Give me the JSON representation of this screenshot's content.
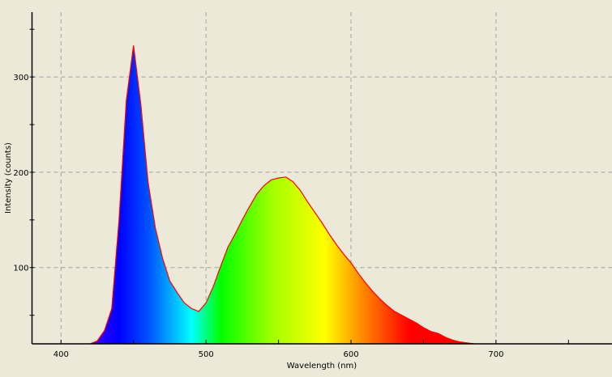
{
  "chart_data": {
    "type": "area",
    "title": "",
    "xlabel": "Wavelength (nm)",
    "ylabel": "Intensity (counts)",
    "xlim": [
      380,
      780
    ],
    "ylim": [
      20,
      368
    ],
    "x_ticks": [
      400,
      500,
      600,
      700
    ],
    "y_ticks": [
      100,
      200,
      300
    ],
    "grid": true,
    "fill": "wavelength-colored spectrum gradient",
    "line_color": "#ff0000",
    "background": "#ece9d8",
    "series": [
      {
        "x": [
          420,
          425,
          430,
          435,
          440,
          445,
          450,
          455,
          460,
          465,
          470,
          475,
          480,
          485,
          490,
          495,
          500,
          505,
          510,
          515,
          520,
          525,
          530,
          535,
          540,
          545,
          550,
          555,
          560,
          565,
          570,
          575,
          580,
          585,
          590,
          595,
          600,
          605,
          610,
          615,
          620,
          625,
          630,
          635,
          640,
          645,
          650,
          655,
          660,
          665,
          670,
          675,
          680,
          685
        ],
        "y": [
          20,
          23,
          34,
          57,
          150,
          275,
          333,
          272,
          190,
          142,
          110,
          86,
          74,
          63,
          57,
          54,
          63,
          80,
          101,
          121,
          135,
          150,
          164,
          177,
          186,
          192,
          194,
          195,
          190,
          181,
          169,
          158,
          147,
          135,
          124,
          114,
          105,
          94,
          84,
          75,
          67,
          60,
          54,
          50,
          46,
          42,
          37,
          33,
          31,
          27,
          24,
          22,
          21,
          20
        ]
      }
    ]
  }
}
